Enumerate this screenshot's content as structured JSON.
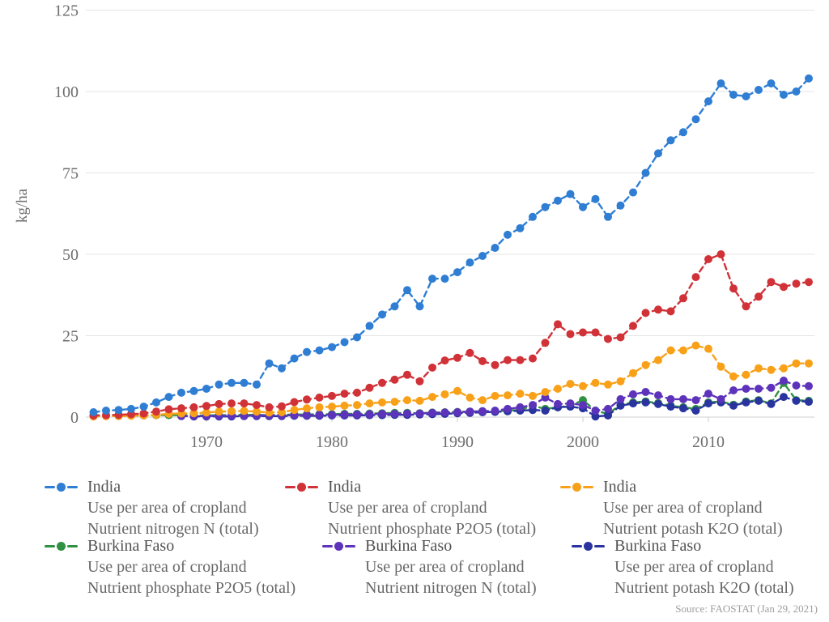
{
  "source_note": "Source: FAOSTAT (Jan 29, 2021)",
  "chart_data": {
    "type": "line",
    "title": "",
    "xlabel": "",
    "ylabel": "kg/ha",
    "ylim": [
      0,
      125
    ],
    "xlim": [
      1961,
      2018
    ],
    "yticks": [
      0,
      25,
      50,
      75,
      100,
      125
    ],
    "xticks": [
      1970,
      1980,
      1990,
      2000,
      2010
    ],
    "grid": "horizontal",
    "legend_position": "bottom",
    "line_style": "dashed-with-circle-markers",
    "x": [
      1961,
      1962,
      1963,
      1964,
      1965,
      1966,
      1967,
      1968,
      1969,
      1970,
      1971,
      1972,
      1973,
      1974,
      1975,
      1976,
      1977,
      1978,
      1979,
      1980,
      1981,
      1982,
      1983,
      1984,
      1985,
      1986,
      1987,
      1988,
      1989,
      1990,
      1991,
      1992,
      1993,
      1994,
      1995,
      1996,
      1997,
      1998,
      1999,
      2000,
      2001,
      2002,
      2003,
      2004,
      2005,
      2006,
      2007,
      2008,
      2009,
      2010,
      2011,
      2012,
      2013,
      2014,
      2015,
      2016,
      2017,
      2018
    ],
    "series": [
      {
        "name": "India",
        "metric": "Use per area of cropland",
        "nutrient": "Nutrient nitrogen N (total)",
        "color": "#2f7ed3",
        "values": [
          1.5,
          2.0,
          2.2,
          2.5,
          3.2,
          4.5,
          6.2,
          7.5,
          8.0,
          8.7,
          10.0,
          10.5,
          10.5,
          10.0,
          16.5,
          15.0,
          18.0,
          20.0,
          20.5,
          21.5,
          23.0,
          24.5,
          28.0,
          31.5,
          34.0,
          39.0,
          34.0,
          42.5,
          42.5,
          44.5,
          47.5,
          49.5,
          52.0,
          56.0,
          58.0,
          61.5,
          64.5,
          66.5,
          68.5,
          64.5,
          67.0,
          61.5,
          65.0,
          69.0,
          75.0,
          81.0,
          85.0,
          87.5,
          91.5,
          97.0,
          102.5,
          99.0,
          98.5,
          100.5,
          102.5,
          99.0,
          100.0,
          104.0
        ]
      },
      {
        "name": "India",
        "metric": "Use per area of cropland",
        "nutrient": "Nutrient phosphate P2O5 (total)",
        "color": "#d03238",
        "values": [
          0.5,
          0.6,
          0.7,
          0.9,
          1.1,
          1.7,
          2.4,
          2.7,
          3.0,
          3.4,
          4.0,
          4.2,
          4.2,
          3.7,
          3.0,
          3.3,
          4.6,
          5.4,
          6.0,
          6.5,
          7.2,
          7.5,
          9.0,
          10.5,
          11.5,
          13.0,
          11.0,
          15.2,
          17.4,
          18.2,
          19.7,
          17.2,
          16.0,
          17.5,
          17.5,
          18.0,
          22.8,
          28.5,
          25.5,
          26.0,
          26.0,
          24.0,
          24.5,
          28.0,
          32.0,
          33.0,
          32.5,
          36.5,
          43.0,
          48.5,
          50.0,
          39.5,
          34.0,
          37.0,
          41.5,
          40.0,
          41.0,
          41.5
        ]
      },
      {
        "name": "India",
        "metric": "Use per area of cropland",
        "nutrient": "Nutrient potash K2O (total)",
        "color": "#f8a118",
        "values": [
          0.2,
          0.3,
          0.3,
          0.4,
          0.5,
          0.7,
          1.0,
          1.1,
          1.2,
          1.4,
          1.7,
          1.8,
          1.9,
          1.7,
          1.4,
          1.5,
          2.2,
          2.7,
          3.0,
          3.2,
          3.5,
          3.7,
          4.2,
          4.5,
          4.7,
          5.2,
          5.0,
          6.2,
          7.0,
          8.0,
          6.0,
          5.2,
          6.5,
          6.7,
          7.2,
          6.5,
          7.7,
          8.7,
          10.2,
          9.5,
          10.5,
          10.0,
          11.0,
          13.5,
          16.0,
          17.5,
          20.5,
          20.5,
          22.0,
          21.0,
          15.5,
          12.5,
          13.0,
          15.0,
          14.5,
          15.0,
          16.5,
          16.5
        ]
      },
      {
        "name": "Burkina Faso",
        "metric": "Use per area of cropland",
        "nutrient": "Nutrient phosphate P2O5 (total)",
        "color": "#2f9142",
        "values": [
          0.5,
          0.5,
          0.5,
          0.5,
          0.5,
          0.6,
          0.6,
          0.6,
          0.5,
          0.5,
          0.6,
          0.6,
          0.7,
          0.7,
          0.6,
          0.7,
          0.8,
          0.8,
          0.9,
          0.9,
          1.0,
          1.0,
          1.1,
          1.2,
          1.3,
          1.3,
          1.2,
          1.4,
          1.5,
          1.6,
          1.7,
          1.8,
          1.8,
          2.0,
          2.2,
          3.5,
          2.5,
          3.0,
          3.5,
          5.2,
          2.0,
          1.0,
          3.8,
          4.5,
          4.8,
          4.3,
          3.5,
          3.0,
          2.5,
          4.5,
          4.8,
          3.8,
          4.8,
          5.2,
          4.2,
          10.5,
          5.2,
          5.0
        ]
      },
      {
        "name": "Burkina Faso",
        "metric": "Use per area of cropland",
        "nutrient": "Nutrient nitrogen N (total)",
        "color": "#5d33bb",
        "values": [
          null,
          null,
          null,
          null,
          null,
          null,
          null,
          0.3,
          0.3,
          0.3,
          0.4,
          0.4,
          0.4,
          0.5,
          0.5,
          0.5,
          0.6,
          0.6,
          0.7,
          0.7,
          0.8,
          0.8,
          0.9,
          1.0,
          1.0,
          1.1,
          1.1,
          1.3,
          1.4,
          1.5,
          1.7,
          1.8,
          2.0,
          2.5,
          3.0,
          3.7,
          6.0,
          4.0,
          4.2,
          3.7,
          2.0,
          2.5,
          5.5,
          7.0,
          7.7,
          6.7,
          5.5,
          5.5,
          5.2,
          7.2,
          5.5,
          8.2,
          8.7,
          8.7,
          9.0,
          11.2,
          9.7,
          9.5
        ]
      },
      {
        "name": "Burkina Faso",
        "metric": "Use per area of cropland",
        "nutrient": "Nutrient potash K2O (total)",
        "color": "#29349f",
        "values": [
          null,
          null,
          null,
          null,
          null,
          null,
          null,
          null,
          0.2,
          0.2,
          0.2,
          0.2,
          0.3,
          0.3,
          0.3,
          0.3,
          0.4,
          0.4,
          0.4,
          0.5,
          0.5,
          0.5,
          0.6,
          0.6,
          0.7,
          0.7,
          0.8,
          0.9,
          1.0,
          1.2,
          1.3,
          1.5,
          1.6,
          1.8,
          2.0,
          2.2,
          2.0,
          3.0,
          3.2,
          2.7,
          0.2,
          0.5,
          3.5,
          4.2,
          4.5,
          4.0,
          3.2,
          2.7,
          2.0,
          4.2,
          4.5,
          3.5,
          4.5,
          5.0,
          4.0,
          6.2,
          5.0,
          4.7
        ]
      }
    ]
  }
}
